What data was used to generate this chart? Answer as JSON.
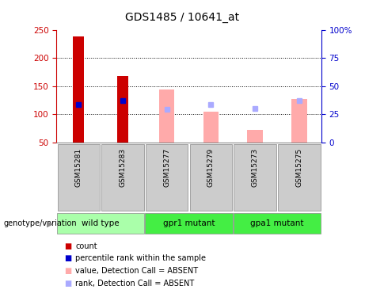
{
  "title": "GDS1485 / 10641_at",
  "samples": [
    "GSM15281",
    "GSM15283",
    "GSM15277",
    "GSM15279",
    "GSM15273",
    "GSM15275"
  ],
  "count_values": [
    238,
    168,
    null,
    null,
    null,
    null
  ],
  "count_color": "#cc0000",
  "rank_values": [
    118,
    124,
    null,
    null,
    null,
    null
  ],
  "rank_color": "#0000cc",
  "absent_value_values": [
    null,
    null,
    144,
    105,
    72,
    127
  ],
  "absent_value_color": "#ffaaaa",
  "absent_rank_values": [
    null,
    null,
    109,
    117,
    110,
    124
  ],
  "absent_rank_color": "#aaaaff",
  "ylim_left": [
    50,
    250
  ],
  "ylim_right": [
    0,
    100
  ],
  "yticks_left": [
    50,
    100,
    150,
    200,
    250
  ],
  "yticks_right": [
    0,
    25,
    50,
    75,
    100
  ],
  "ytick_labels_right": [
    "0",
    "25",
    "50",
    "75",
    "100%"
  ],
  "left_ylabel_color": "#cc0000",
  "right_ylabel_color": "#0000cc",
  "legend_items": [
    {
      "label": "count",
      "color": "#cc0000"
    },
    {
      "label": "percentile rank within the sample",
      "color": "#0000cc"
    },
    {
      "label": "value, Detection Call = ABSENT",
      "color": "#ffaaaa"
    },
    {
      "label": "rank, Detection Call = ABSENT",
      "color": "#aaaaff"
    }
  ],
  "background_color": "#ffffff",
  "sample_bg_color": "#cccccc",
  "group_info": [
    {
      "label": "wild type",
      "start": 0,
      "end": 2,
      "color": "#aaffaa"
    },
    {
      "label": "gpr1 mutant",
      "start": 2,
      "end": 4,
      "color": "#44ee44"
    },
    {
      "label": "gpa1 mutant",
      "start": 4,
      "end": 6,
      "color": "#44ee44"
    }
  ]
}
